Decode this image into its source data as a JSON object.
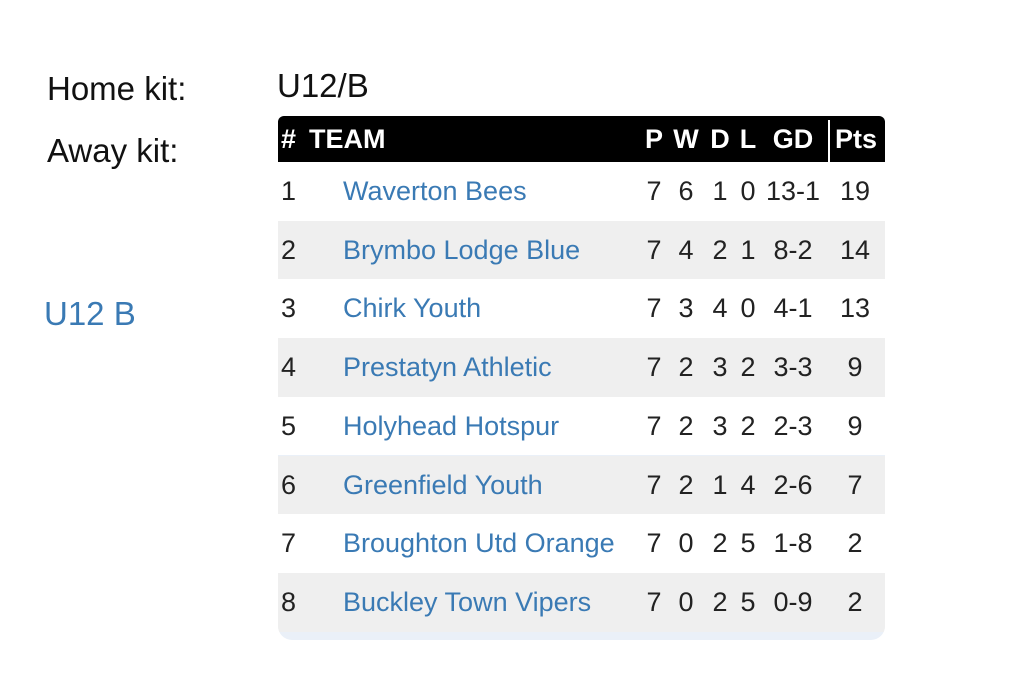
{
  "labels": {
    "home_kit": "Home kit:",
    "away_kit": "Away kit:",
    "team_link": "U12 B"
  },
  "table": {
    "caption": "U12/B",
    "header": [
      "#",
      "TEAM",
      "P",
      "W",
      "D",
      "L",
      "GD",
      "Pts"
    ],
    "rows": [
      [
        1,
        "Waverton Bees",
        7,
        6,
        1,
        0,
        "13-1",
        19
      ],
      [
        2,
        "Brymbo Lodge Blue",
        7,
        4,
        2,
        1,
        "8-2",
        14
      ],
      [
        3,
        "Chirk Youth",
        7,
        3,
        4,
        0,
        "4-1",
        13
      ],
      [
        4,
        "Prestatyn Athletic",
        7,
        2,
        3,
        2,
        "3-3",
        9
      ],
      [
        5,
        "Holyhead Hotspur",
        7,
        2,
        3,
        2,
        "2-3",
        9
      ],
      [
        6,
        "Greenfield Youth",
        7,
        2,
        1,
        4,
        "2-6",
        7
      ],
      [
        7,
        "Broughton Utd Orange",
        7,
        0,
        2,
        5,
        "1-8",
        2
      ],
      [
        8,
        "Buckley Town Vipers",
        7,
        0,
        2,
        5,
        "0-9",
        2
      ]
    ]
  }
}
